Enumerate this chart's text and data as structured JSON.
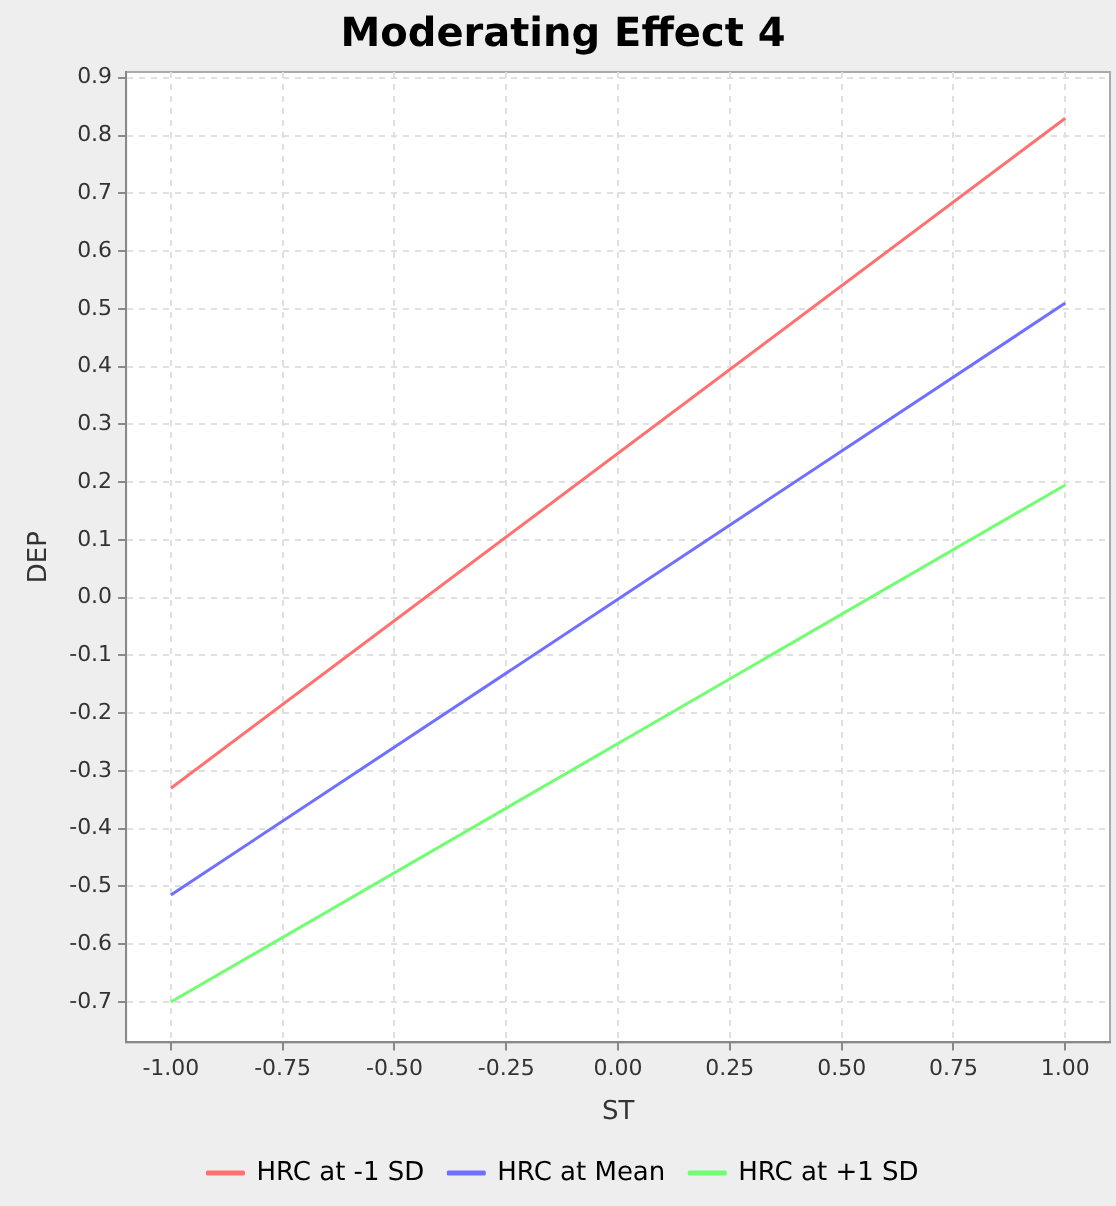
{
  "chart_data": {
    "type": "line",
    "title": "Moderating Effect 4",
    "xlabel": "ST",
    "ylabel": "DEP",
    "x": [
      -1,
      1
    ],
    "series": [
      {
        "name": "HRC at -1 SD",
        "color": "#ff7070",
        "values": [
          -0.33,
          0.83
        ]
      },
      {
        "name": "HRC at Mean",
        "color": "#7070ff",
        "values": [
          -0.515,
          0.51
        ]
      },
      {
        "name": "HRC at +1 SD",
        "color": "#70ff70",
        "values": [
          -0.7,
          0.195
        ]
      }
    ],
    "xlim": [
      -1.1,
      1.1
    ],
    "xticks": [
      {
        "value": -1,
        "label": "-1.00"
      },
      {
        "value": -0.75,
        "label": "-0.75"
      },
      {
        "value": -0.5,
        "label": "-0.50"
      },
      {
        "value": -0.25,
        "label": "-0.25"
      },
      {
        "value": 0,
        "label": "0.00"
      },
      {
        "value": 0.25,
        "label": "0.25"
      },
      {
        "value": 0.5,
        "label": "0.50"
      },
      {
        "value": 0.75,
        "label": "0.75"
      },
      {
        "value": 1,
        "label": "1.00"
      }
    ],
    "ylim": [
      -0.77,
      0.91
    ],
    "yticks": [
      {
        "value": -0.7,
        "label": "-0.7"
      },
      {
        "value": -0.6,
        "label": "-0.6"
      },
      {
        "value": -0.5,
        "label": "-0.5"
      },
      {
        "value": -0.4,
        "label": "-0.4"
      },
      {
        "value": -0.3,
        "label": "-0.3"
      },
      {
        "value": -0.2,
        "label": "-0.2"
      },
      {
        "value": -0.1,
        "label": "-0.1"
      },
      {
        "value": 0,
        "label": "0.0"
      },
      {
        "value": 0.1,
        "label": "0.1"
      },
      {
        "value": 0.2,
        "label": "0.2"
      },
      {
        "value": 0.3,
        "label": "0.3"
      },
      {
        "value": 0.4,
        "label": "0.4"
      },
      {
        "value": 0.5,
        "label": "0.5"
      },
      {
        "value": 0.6,
        "label": "0.6"
      },
      {
        "value": 0.7,
        "label": "0.7"
      },
      {
        "value": 0.8,
        "label": "0.8"
      },
      {
        "value": 0.9,
        "label": "0.9"
      }
    ],
    "grid": true,
    "legend": "bottom",
    "marker": "none",
    "line_style": "solid"
  }
}
